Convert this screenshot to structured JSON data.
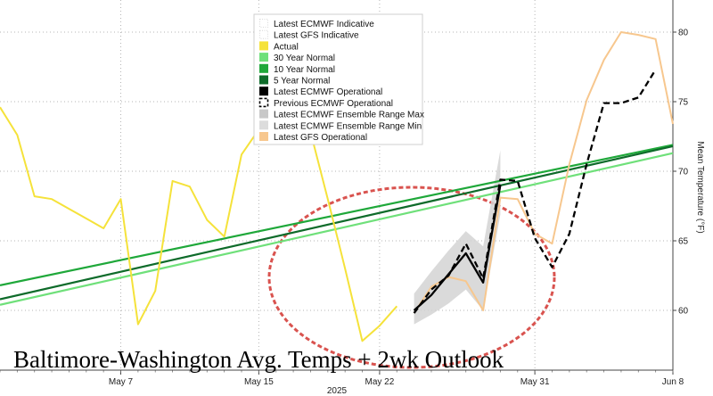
{
  "chart_data": {
    "type": "line",
    "title": "Baltimore-Washington Avg. Temps + 2wk Outlook",
    "xlabel": "2025",
    "ylabel": "Mean Temperature (°F)",
    "ylim": [
      57,
      82
    ],
    "xlim": [
      "2025-04-30",
      "2025-06-08"
    ],
    "grid": true,
    "legend_position": "top-center",
    "x_ticks": [
      "2025-05-07",
      "2025-05-15",
      "2025-05-22",
      "2025-05-31",
      "2025-06-08"
    ],
    "x_tick_labels": [
      "May 7",
      "May 15",
      "May 22",
      "May 31",
      "Jun 8"
    ],
    "y_ticks": [
      60,
      65,
      70,
      75,
      80
    ],
    "y_tick_labels": [
      "60",
      "65",
      "70",
      "75",
      "80"
    ],
    "series": [
      {
        "name": "Latest ECMWF Indicative",
        "color": "#bbbbbb",
        "style": "none",
        "points": []
      },
      {
        "name": "Latest GFS Indicative",
        "color": "#bbbbbb",
        "style": "none",
        "points": []
      },
      {
        "name": "Actual",
        "color": "#f5e23a",
        "style": "line",
        "points": [
          [
            "2025-04-30",
            74.6
          ],
          [
            "2025-05-01",
            72.6
          ],
          [
            "2025-05-02",
            68.2
          ],
          [
            "2025-05-03",
            68.0
          ],
          [
            "2025-05-04",
            67.3
          ],
          [
            "2025-05-05",
            66.6
          ],
          [
            "2025-05-06",
            65.9
          ],
          [
            "2025-05-07",
            68.0
          ],
          [
            "2025-05-08",
            59.0
          ],
          [
            "2025-05-09",
            61.4
          ],
          [
            "2025-05-10",
            69.3
          ],
          [
            "2025-05-11",
            68.9
          ],
          [
            "2025-05-12",
            66.5
          ],
          [
            "2025-05-13",
            65.3
          ],
          [
            "2025-05-14",
            71.2
          ],
          [
            "2025-05-15",
            73.0
          ],
          [
            "2025-05-16",
            74.4
          ],
          [
            "2025-05-17",
            75.2
          ],
          [
            "2025-05-18",
            72.8
          ],
          [
            "2025-05-19",
            68.0
          ],
          [
            "2025-05-20",
            63.0
          ],
          [
            "2025-05-21",
            57.8
          ],
          [
            "2025-05-22",
            58.9
          ],
          [
            "2025-05-23",
            60.3
          ]
        ]
      },
      {
        "name": "30 Year Normal",
        "color": "#6fe07a",
        "style": "line",
        "points": [
          [
            "2025-04-30",
            60.4
          ],
          [
            "2025-06-08",
            71.3
          ]
        ]
      },
      {
        "name": "10 Year Normal",
        "color": "#1fa83a",
        "style": "line",
        "points": [
          [
            "2025-04-30",
            61.8
          ],
          [
            "2025-06-08",
            71.9
          ]
        ]
      },
      {
        "name": "5 Year Normal",
        "color": "#0e6b2a",
        "style": "line",
        "points": [
          [
            "2025-04-30",
            60.8
          ],
          [
            "2025-06-08",
            71.8
          ]
        ]
      },
      {
        "name": "Latest ECMWF Operational",
        "color": "#000000",
        "style": "line",
        "points": [
          [
            "2025-05-24",
            60.0
          ],
          [
            "2025-05-25",
            61.1
          ],
          [
            "2025-05-26",
            62.6
          ],
          [
            "2025-05-27",
            64.1
          ],
          [
            "2025-05-28",
            62.0
          ],
          [
            "2025-05-29",
            69.0
          ]
        ]
      },
      {
        "name": "Previous ECMWF Operational",
        "color": "#000000",
        "style": "dashed",
        "points": [
          [
            "2025-05-24",
            59.8
          ],
          [
            "2025-05-25",
            61.5
          ],
          [
            "2025-05-26",
            62.5
          ],
          [
            "2025-05-27",
            64.8
          ],
          [
            "2025-05-28",
            62.3
          ],
          [
            "2025-05-29",
            69.4
          ],
          [
            "2025-05-30",
            69.3
          ],
          [
            "2025-05-31",
            65.2
          ],
          [
            "2025-06-01",
            63.1
          ],
          [
            "2025-06-02",
            65.5
          ],
          [
            "2025-06-03",
            70.5
          ],
          [
            "2025-06-04",
            74.9
          ],
          [
            "2025-06-05",
            74.9
          ],
          [
            "2025-06-06",
            75.3
          ],
          [
            "2025-06-07",
            77.3
          ]
        ]
      },
      {
        "name": "Latest ECMWF Ensemble Range Max",
        "color": "#c8c8c8",
        "style": "band",
        "points": [
          [
            "2025-05-24",
            61.2
          ],
          [
            "2025-05-25",
            62.8
          ],
          [
            "2025-05-26",
            64.3
          ],
          [
            "2025-05-27",
            65.7
          ],
          [
            "2025-05-28",
            64.6
          ],
          [
            "2025-05-29",
            71.5
          ]
        ]
      },
      {
        "name": "Latest ECMWF Ensemble Range Min",
        "color": "#dcdcdc",
        "style": "band",
        "points": [
          [
            "2025-05-24",
            59.0
          ],
          [
            "2025-05-25",
            59.7
          ],
          [
            "2025-05-26",
            60.5
          ],
          [
            "2025-05-27",
            61.5
          ],
          [
            "2025-05-28",
            60.0
          ],
          [
            "2025-05-29",
            66.9
          ]
        ]
      },
      {
        "name": "Latest GFS Operational",
        "color": "#f7c78e",
        "style": "line",
        "points": [
          [
            "2025-05-24",
            59.8
          ],
          [
            "2025-05-25",
            61.7
          ],
          [
            "2025-05-26",
            62.4
          ],
          [
            "2025-05-27",
            62.1
          ],
          [
            "2025-05-28",
            60.0
          ],
          [
            "2025-05-29",
            68.1
          ],
          [
            "2025-05-30",
            68.0
          ],
          [
            "2025-05-31",
            65.5
          ],
          [
            "2025-06-01",
            64.8
          ],
          [
            "2025-06-02",
            70.5
          ],
          [
            "2025-06-03",
            75.1
          ],
          [
            "2025-06-04",
            78.0
          ],
          [
            "2025-06-05",
            80.0
          ],
          [
            "2025-06-06",
            79.8
          ],
          [
            "2025-06-07",
            79.5
          ],
          [
            "2025-06-08",
            73.4
          ]
        ]
      }
    ],
    "annotation": "Baltimore-Washington Avg. Temps + 2wk Outlook"
  }
}
